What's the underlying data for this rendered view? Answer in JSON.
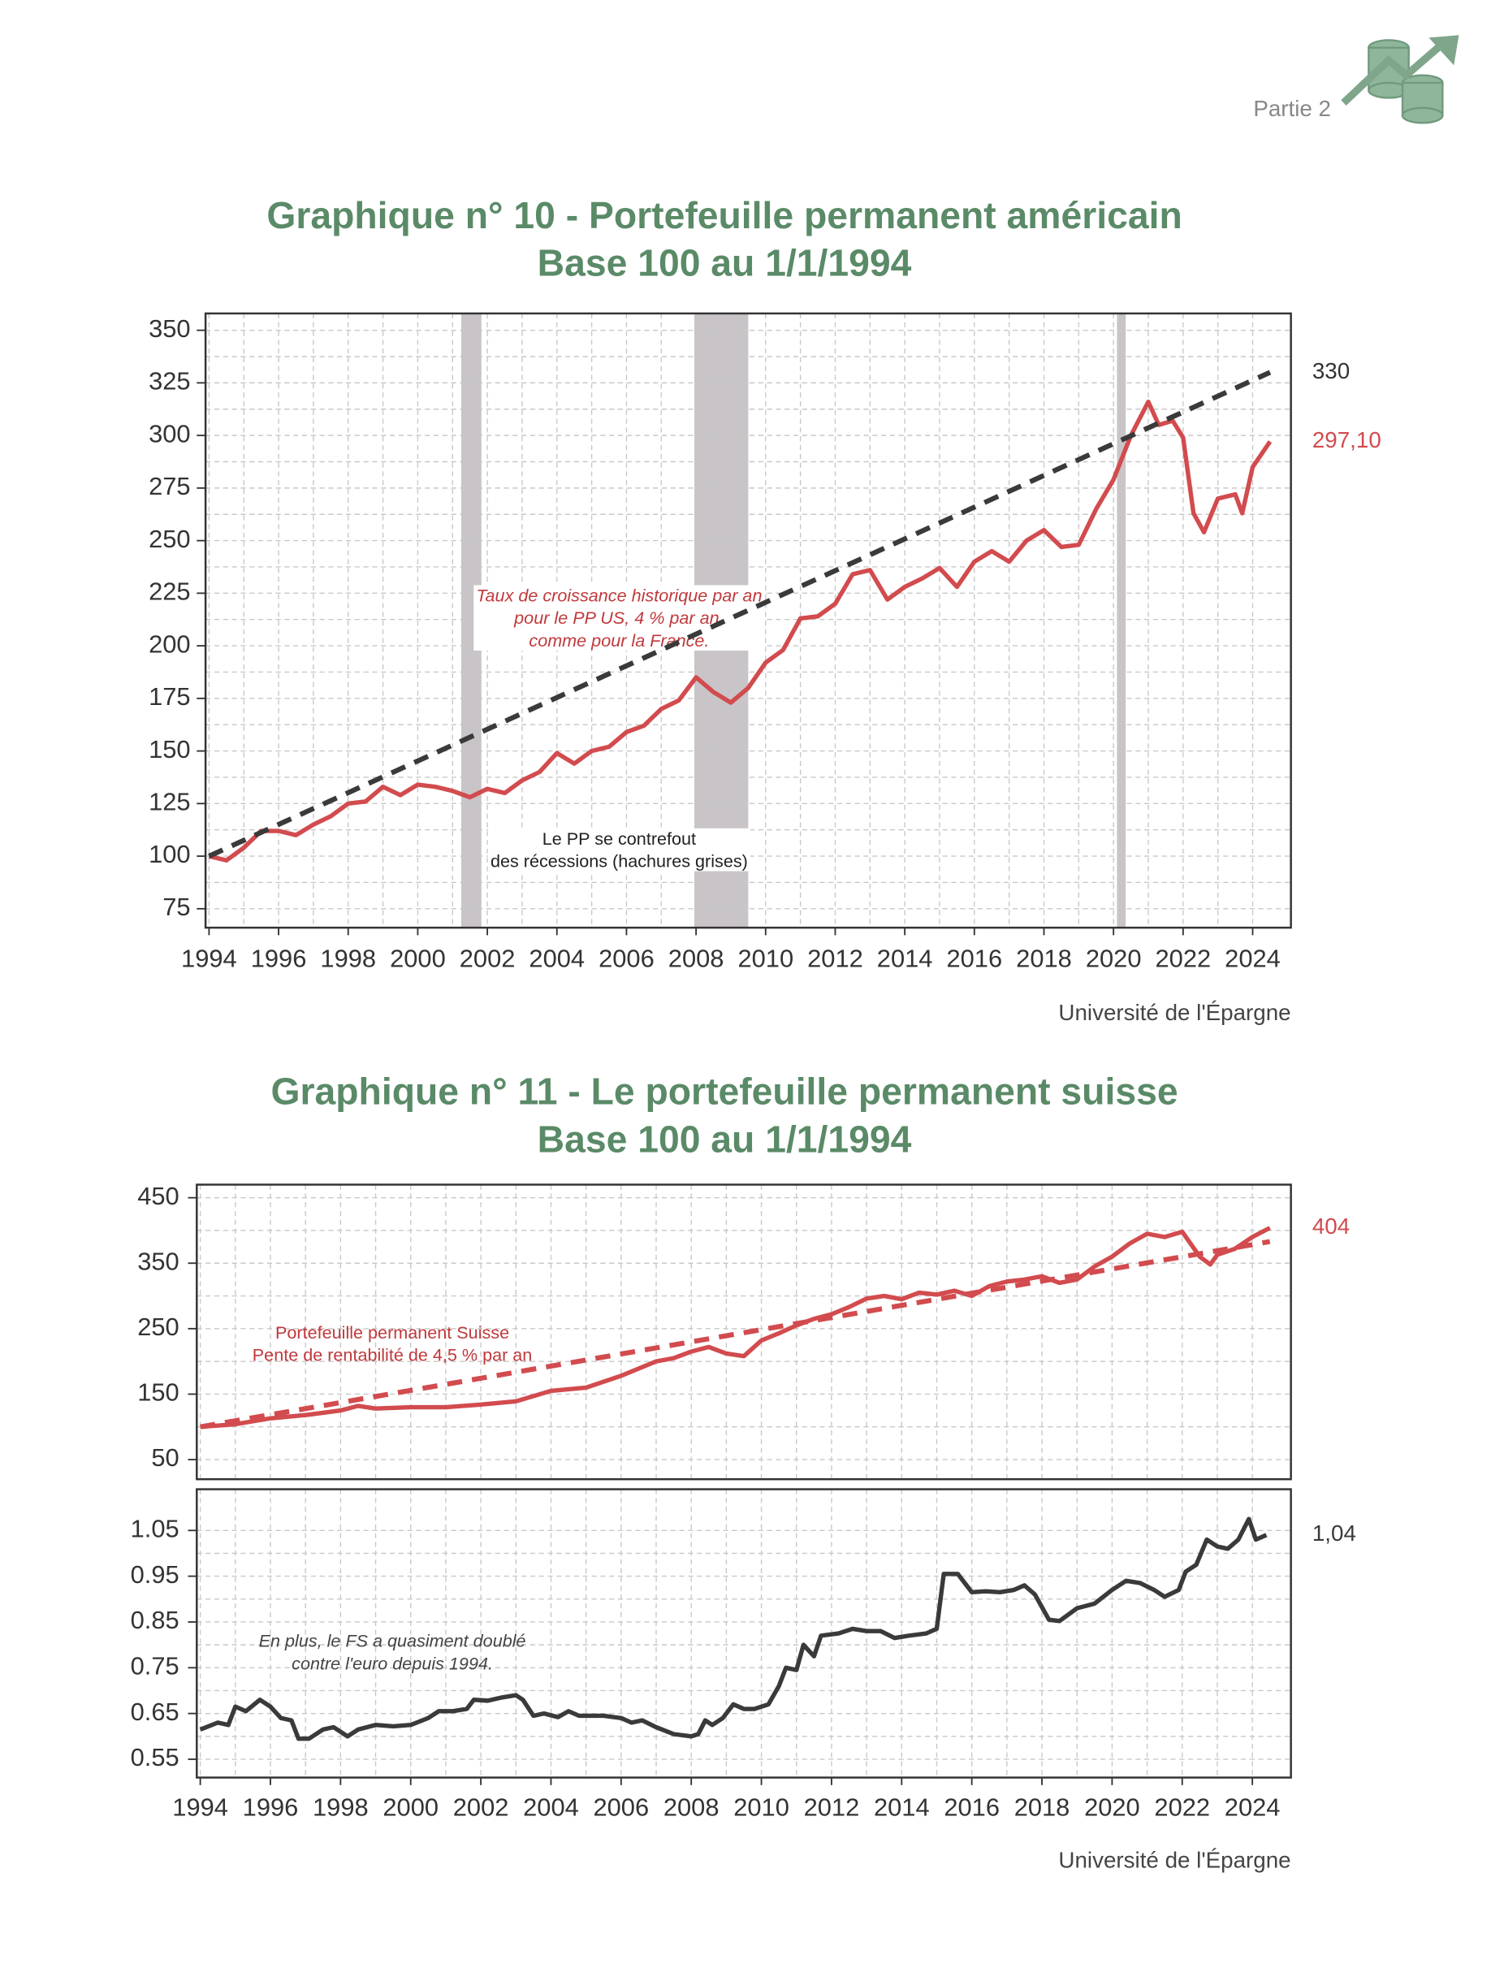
{
  "header": {
    "section": "Partie 2"
  },
  "chart_data": [
    {
      "type": "line",
      "title": [
        "Graphique n° 10 - Portefeuille permanent américain",
        "Base 100 au 1/1/1994"
      ],
      "xlim": [
        1993.9,
        2025.1
      ],
      "ylim": [
        66,
        358
      ],
      "xticks": [
        1994,
        1996,
        1998,
        2000,
        2002,
        2004,
        2006,
        2008,
        2010,
        2012,
        2014,
        2016,
        2018,
        2020,
        2022,
        2024
      ],
      "yticks": [
        75,
        100,
        125,
        150,
        175,
        200,
        225,
        250,
        275,
        300,
        325,
        350
      ],
      "show_xtick_labels": true,
      "grid": true,
      "recessions": [
        [
          2001.25,
          2001.83
        ],
        [
          2007.95,
          2009.5
        ],
        [
          2020.1,
          2020.35
        ]
      ],
      "recession_color": "#c9c4c7",
      "series": [
        {
          "color": "#d24b4e",
          "dashed": false,
          "x": [
            1994,
            1994.5,
            1995,
            1995.5,
            1996,
            1996.5,
            1997,
            1997.5,
            1998,
            1998.5,
            1999,
            1999.5,
            2000,
            2000.5,
            2001,
            2001.5,
            2002,
            2002.5,
            2003,
            2003.5,
            2004,
            2004.5,
            2005,
            2005.5,
            2006,
            2006.5,
            2007,
            2007.5,
            2008,
            2008.5,
            2009,
            2009.5,
            2010,
            2010.5,
            2011,
            2011.5,
            2012,
            2012.5,
            2013,
            2013.5,
            2014,
            2014.5,
            2015,
            2015.5,
            2016,
            2016.5,
            2017,
            2017.5,
            2018,
            2018.5,
            2019,
            2019.5,
            2020,
            2020.5,
            2021,
            2021.3,
            2021.7,
            2022,
            2022.3,
            2022.6,
            2023,
            2023.5,
            2023.7,
            2024,
            2024.5
          ],
          "values": [
            100,
            98,
            104,
            112,
            112,
            110,
            115,
            119,
            125,
            126,
            133,
            129,
            134,
            133,
            131,
            128,
            132,
            130,
            136,
            140,
            149,
            144,
            150,
            152,
            159,
            162,
            170,
            174,
            185,
            178,
            173,
            180,
            192,
            198,
            213,
            214,
            220,
            234,
            236,
            222,
            228,
            232,
            237,
            228,
            240,
            245,
            240,
            250,
            255,
            247,
            248,
            265,
            279,
            300,
            316,
            305,
            307,
            299,
            263,
            254,
            270,
            272,
            263,
            285,
            297.1
          ],
          "end_label": {
            "value": 297.1,
            "label": "297,10"
          }
        },
        {
          "color": "#3a3a3a",
          "dashed": true,
          "x": [
            1994,
            2024.5
          ],
          "values": [
            100,
            330
          ],
          "end_label": {
            "value": 330,
            "label": "330"
          }
        }
      ],
      "annotations": [
        {
          "lines": [
            "Taux de croissance historique par an",
            "pour le PP US, 4 % par an,",
            "comme pour la France."
          ],
          "color": "#c0393c",
          "italic": true,
          "boxed": true
        },
        {
          "lines": [
            "Le PP se contrefout",
            "des récessions (hachures grises)"
          ],
          "color": "#222222",
          "italic": false,
          "boxed": true
        }
      ],
      "source": "Université de l'Épargne"
    },
    {
      "type": "line",
      "title": [
        "Graphique n° 11 - Le portefeuille permanent suisse",
        "Base 100 au 1/1/1994"
      ],
      "xlim": [
        1993.9,
        2025.1
      ],
      "ylim": [
        20,
        470
      ],
      "xticks": [
        1994,
        1996,
        1998,
        2000,
        2002,
        2004,
        2006,
        2008,
        2010,
        2012,
        2014,
        2016,
        2018,
        2020,
        2022,
        2024
      ],
      "yticks": [
        50,
        150,
        250,
        350,
        450
      ],
      "show_xtick_labels": false,
      "grid": true,
      "series": [
        {
          "color": "#d24b4e",
          "dashed": false,
          "x": [
            1994,
            1995,
            1996,
            1997,
            1998,
            1998.5,
            1999,
            2000,
            2001,
            2002,
            2003,
            2004,
            2005,
            2006,
            2007,
            2007.5,
            2008,
            2008.5,
            2009,
            2009.5,
            2010,
            2010.5,
            2011,
            2011.5,
            2012,
            2012.5,
            2013,
            2013.5,
            2014,
            2014.5,
            2015,
            2015.5,
            2016,
            2016.5,
            2017,
            2017.5,
            2018,
            2018.5,
            2019,
            2019.5,
            2020,
            2020.5,
            2021,
            2021.5,
            2022,
            2022.5,
            2022.8,
            2023,
            2023.5,
            2024,
            2024.5
          ],
          "values": [
            100,
            104,
            113,
            118,
            125,
            132,
            128,
            130,
            130,
            134,
            139,
            155,
            160,
            178,
            200,
            205,
            215,
            222,
            212,
            208,
            232,
            243,
            255,
            265,
            272,
            283,
            296,
            300,
            295,
            305,
            302,
            308,
            300,
            315,
            322,
            325,
            330,
            320,
            325,
            345,
            360,
            380,
            395,
            390,
            398,
            360,
            348,
            363,
            372,
            390,
            404
          ],
          "end_label": {
            "value": 404,
            "label": "404"
          }
        },
        {
          "color": "#d24b4e",
          "dashed": true,
          "x": [
            1994,
            2024.5
          ],
          "values": [
            100,
            383
          ]
        }
      ],
      "annotations": [
        {
          "lines": [
            "Portefeuille permanent Suisse",
            "Pente de rentabilité de 4,5 % par an"
          ],
          "color": "#c0393c",
          "italic": false,
          "boxed": false
        }
      ]
    },
    {
      "type": "line",
      "xlim": [
        1993.9,
        2025.1
      ],
      "ylim": [
        0.51,
        1.14
      ],
      "xticks": [
        1994,
        1996,
        1998,
        2000,
        2002,
        2004,
        2006,
        2008,
        2010,
        2012,
        2014,
        2016,
        2018,
        2020,
        2022,
        2024
      ],
      "yticks": [
        0.55,
        0.65,
        0.75,
        0.85,
        0.95,
        1.05
      ],
      "show_xtick_labels": true,
      "grid": true,
      "series": [
        {
          "color": "#3a3a3a",
          "dashed": false,
          "x": [
            1994,
            1994.5,
            1994.8,
            1995,
            1995.3,
            1995.7,
            1996,
            1996.3,
            1996.6,
            1996.8,
            1997.1,
            1997.5,
            1997.8,
            1998.2,
            1998.5,
            1999,
            1999.5,
            2000,
            2000.5,
            2000.8,
            2001.2,
            2001.6,
            2001.8,
            2002.2,
            2002.6,
            2003,
            2003.2,
            2003.5,
            2003.8,
            2004.2,
            2004.5,
            2004.8,
            2005.5,
            2006,
            2006.3,
            2006.6,
            2007,
            2007.5,
            2008,
            2008.2,
            2008.4,
            2008.6,
            2008.9,
            2009.2,
            2009.5,
            2009.8,
            2010.2,
            2010.5,
            2010.7,
            2011,
            2011.2,
            2011.5,
            2011.7,
            2012.2,
            2012.6,
            2013,
            2013.4,
            2013.8,
            2014.2,
            2014.7,
            2015,
            2015.2,
            2015.6,
            2016,
            2016.4,
            2016.8,
            2017.2,
            2017.5,
            2017.8,
            2018.2,
            2018.5,
            2019,
            2019.5,
            2020,
            2020.4,
            2020.8,
            2021.2,
            2021.5,
            2021.9,
            2022.1,
            2022.4,
            2022.7,
            2023,
            2023.3,
            2023.6,
            2023.9,
            2024.1,
            2024.4
          ],
          "values": [
            0.615,
            0.63,
            0.625,
            0.665,
            0.655,
            0.68,
            0.665,
            0.64,
            0.635,
            0.595,
            0.595,
            0.615,
            0.62,
            0.6,
            0.615,
            0.625,
            0.622,
            0.625,
            0.64,
            0.655,
            0.655,
            0.66,
            0.68,
            0.678,
            0.685,
            0.69,
            0.68,
            0.645,
            0.65,
            0.642,
            0.655,
            0.645,
            0.645,
            0.64,
            0.63,
            0.635,
            0.62,
            0.605,
            0.6,
            0.605,
            0.635,
            0.625,
            0.64,
            0.67,
            0.66,
            0.66,
            0.67,
            0.71,
            0.75,
            0.745,
            0.8,
            0.775,
            0.82,
            0.825,
            0.835,
            0.83,
            0.83,
            0.815,
            0.82,
            0.825,
            0.835,
            0.955,
            0.955,
            0.915,
            0.917,
            0.915,
            0.92,
            0.93,
            0.91,
            0.855,
            0.852,
            0.88,
            0.89,
            0.92,
            0.94,
            0.935,
            0.92,
            0.905,
            0.92,
            0.96,
            0.975,
            1.03,
            1.015,
            1.01,
            1.03,
            1.075,
            1.03,
            1.04
          ],
          "end_label": {
            "value": 1.04,
            "label": "1,04"
          }
        }
      ],
      "annotations": [
        {
          "lines": [
            "En plus, le FS a quasiment doublé",
            "contre l'euro depuis 1994."
          ],
          "color": "#444444",
          "italic": true,
          "boxed": false
        }
      ],
      "source": "Université de l'Épargne"
    }
  ]
}
